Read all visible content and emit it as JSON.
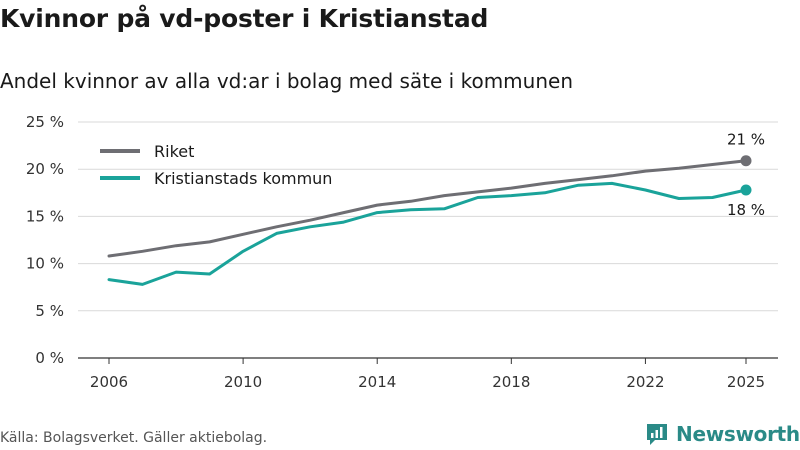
{
  "title": "Kvinnor på vd-poster i Kristianstad",
  "subtitle": "Andel kvinnor av alla vd:ar i bolag med säte i kommunen",
  "source": "Källa: Bolagsverket. Gäller aktiebolag.",
  "brand": "Newsworthy",
  "colors": {
    "riket": "#6e6e73",
    "kristianstad": "#1aa39a",
    "grid": "#d9d9d9",
    "brand": "#2a8a87"
  },
  "chart_data": {
    "type": "line",
    "title": "Kvinnor på vd-poster i Kristianstad",
    "xlabel": "",
    "ylabel": "",
    "x": [
      2006,
      2007,
      2008,
      2009,
      2010,
      2011,
      2012,
      2013,
      2014,
      2015,
      2016,
      2017,
      2018,
      2019,
      2020,
      2021,
      2022,
      2023,
      2024,
      2025
    ],
    "xlim": [
      2006,
      2025
    ],
    "ylim": [
      0,
      25
    ],
    "xticks": [
      2006,
      2010,
      2014,
      2018,
      2022,
      2025
    ],
    "xtick_labels": [
      "2006",
      "2010",
      "2014",
      "2018",
      "2022",
      "2025"
    ],
    "yticks": [
      0,
      5,
      10,
      15,
      20,
      25
    ],
    "ytick_labels": [
      "0 %",
      "5 %",
      "10 %",
      "15 %",
      "20 %",
      "25 %"
    ],
    "grid": true,
    "legend_position": "top-left",
    "series": [
      {
        "name": "Riket",
        "values": [
          10.8,
          11.3,
          11.9,
          12.3,
          13.1,
          13.9,
          14.6,
          15.4,
          16.2,
          16.6,
          17.2,
          17.6,
          18.0,
          18.5,
          18.9,
          19.3,
          19.8,
          20.1,
          20.5,
          20.9
        ],
        "end_label": "21 %"
      },
      {
        "name": "Kristianstads kommun",
        "values": [
          8.3,
          7.8,
          9.1,
          8.9,
          11.3,
          13.2,
          13.9,
          14.4,
          15.4,
          15.7,
          15.8,
          17.0,
          17.2,
          17.5,
          18.3,
          18.5,
          17.8,
          16.9,
          17.0,
          17.8
        ],
        "end_label": "18 %"
      }
    ]
  }
}
